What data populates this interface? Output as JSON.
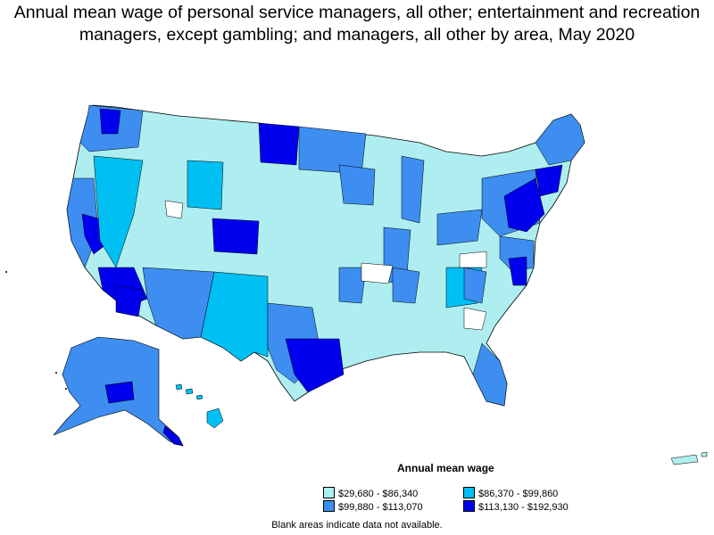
{
  "title": "Annual mean wage of personal service managers, all other; entertainment and recreation managers, except gambling; and managers, all other by area, May 2020",
  "legend": {
    "title": "Annual mean wage",
    "items": [
      {
        "label": "$29,680 - $86,340",
        "color": "#aeeef0"
      },
      {
        "label": "$86,370 - $99,860",
        "color": "#00bff3"
      },
      {
        "label": "$99,880 - $113,070",
        "color": "#3d8ef0"
      },
      {
        "label": "$113,130 - $192,930",
        "color": "#0000ee"
      }
    ]
  },
  "footnote": "Blank areas indicate data not available."
}
